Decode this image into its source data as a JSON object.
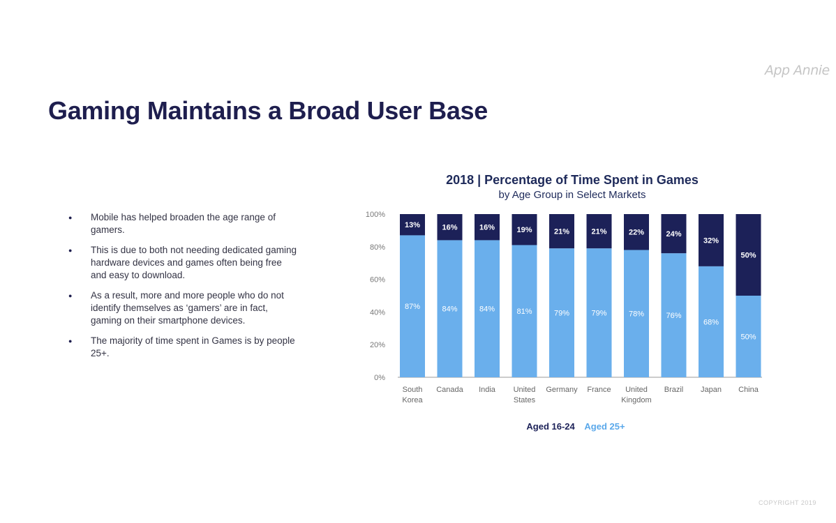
{
  "brand": "App Annie",
  "title": "Gaming Maintains a Broad User Base",
  "bullets": [
    "Mobile has helped broaden the age range of gamers.",
    "This is due to both not needing dedicated gaming hardware devices and games often being free and easy to download.",
    "As a result, more and more people who do not identify themselves as ‘gamers’ are in fact, gaming on their smartphone devices.",
    "The majority of time spent in Games is by people 25+."
  ],
  "copyright": "COPYRIGHT 2019",
  "colors": {
    "aged_16_24": "#1c2158",
    "aged_25_plus": "#6aafec"
  },
  "chart_data": {
    "type": "bar",
    "stacked": true,
    "title": "2018 | Percentage of Time Spent in Games",
    "subtitle": "by Age Group in Select Markets",
    "categories": [
      [
        "South",
        "Korea"
      ],
      [
        "Canada"
      ],
      [
        "India"
      ],
      [
        "United",
        "States"
      ],
      [
        "Germany"
      ],
      [
        "France"
      ],
      [
        "United",
        "Kingdom"
      ],
      [
        "Brazil"
      ],
      [
        "Japan"
      ],
      [
        "China"
      ]
    ],
    "series": [
      {
        "name": "Aged 25+",
        "values": [
          87,
          84,
          84,
          81,
          79,
          79,
          78,
          76,
          68,
          50
        ],
        "labels": [
          "87%",
          "84%",
          "84%",
          "81%",
          "79%",
          "79%",
          "78%",
          "76%",
          "68%",
          "50%"
        ]
      },
      {
        "name": "Aged 16-24",
        "values": [
          13,
          16,
          16,
          19,
          21,
          21,
          22,
          24,
          32,
          50
        ],
        "labels": [
          "13%",
          "16%",
          "16%",
          "19%",
          "21%",
          "21%",
          "22%",
          "24%",
          "32%",
          "50%"
        ]
      }
    ],
    "yticks": [
      "0%",
      "20%",
      "40%",
      "60%",
      "80%",
      "100%"
    ],
    "ylim": [
      0,
      100
    ],
    "legend": [
      "Aged 16-24",
      "Aged 25+"
    ],
    "legend_position": "bottom",
    "grid": false
  }
}
